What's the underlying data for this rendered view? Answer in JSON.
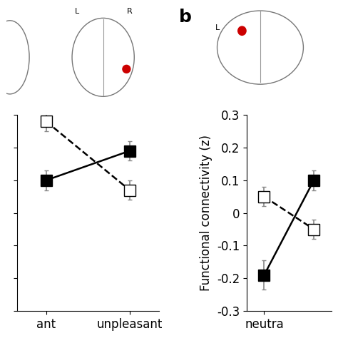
{
  "chart_data": [
    {
      "type": "line",
      "categories": [
        "ant",
        "unpleasant"
      ],
      "ylim": [
        -0.3,
        0.3
      ],
      "yticks": [
        -0.3,
        -0.2,
        -0.1,
        0,
        0.1,
        0.2,
        0.3
      ],
      "tick_labels": "x",
      "annotations": [
        "L",
        "R"
      ],
      "series": [
        {
          "color": "#000000",
          "marker": "filled_square",
          "line_style": "solid",
          "values": [
            0.1,
            0.19
          ],
          "errors": [
            0.03,
            0.03
          ]
        },
        {
          "color": "#000000",
          "marker": "open_square",
          "line_style": "dashed",
          "values": [
            0.28,
            0.07
          ],
          "errors": [
            0.03,
            0.03
          ]
        }
      ]
    },
    {
      "type": "line",
      "panel_label": "b",
      "categories": [
        "neutra",
        null
      ],
      "y_label": "Functional connectivity (z)",
      "ylim": [
        -0.3,
        0.3
      ],
      "yticks": [
        -0.3,
        -0.2,
        -0.1,
        0,
        0.1,
        0.2,
        0.3
      ],
      "annotations": [
        "L"
      ],
      "series": [
        {
          "color": "#000000",
          "marker": "filled_square",
          "line_style": "solid",
          "values": [
            -0.19,
            0.1
          ],
          "errors": [
            0.045,
            0.03
          ]
        },
        {
          "color": "#000000",
          "marker": "open_square",
          "line_style": "dashed",
          "values": [
            0.05,
            -0.05
          ],
          "errors": [
            0.03,
            0.03
          ]
        }
      ]
    }
  ]
}
